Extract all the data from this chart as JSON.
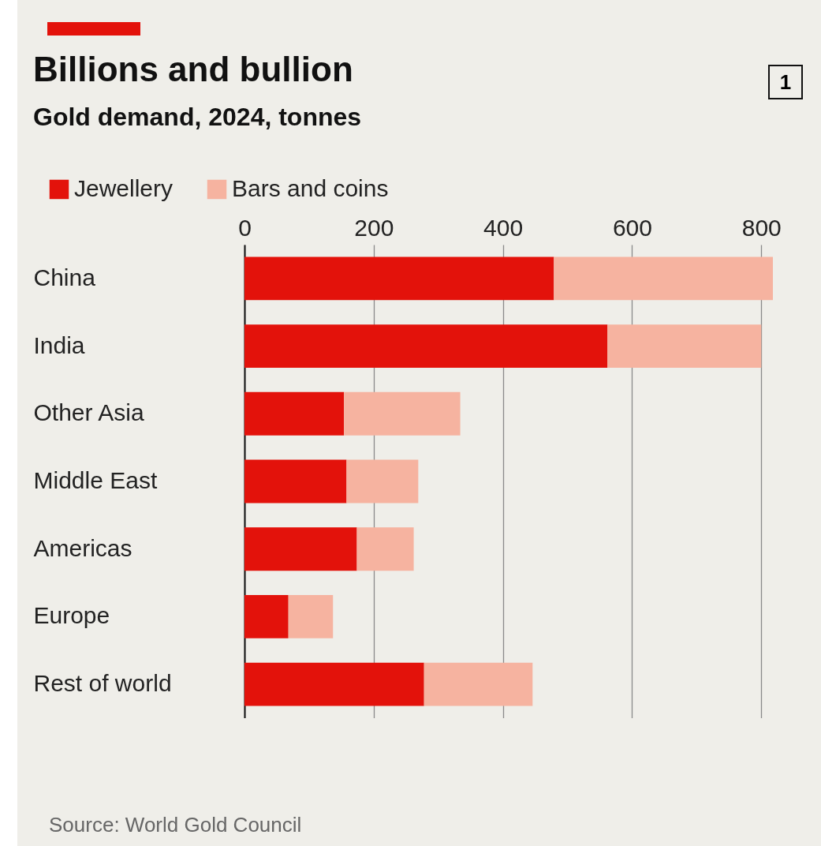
{
  "chart_data": {
    "type": "bar",
    "orientation": "horizontal",
    "stacked": true,
    "title": "Billions and bullion",
    "subtitle": "Gold demand, 2024, tonnes",
    "categories": [
      "China",
      "India",
      "Other Asia",
      "Middle East",
      "Americas",
      "Europe",
      "Rest of world"
    ],
    "series": [
      {
        "name": "Jewellery",
        "color": "#e3120b",
        "values": [
          479,
          562,
          154,
          158,
          174,
          68,
          278
        ]
      },
      {
        "name": "Bars and coins",
        "color": "#f6b3a0",
        "values": [
          339,
          238,
          180,
          111,
          88,
          69,
          168
        ]
      }
    ],
    "xlim": [
      0,
      818
    ],
    "xticks": [
      0,
      200,
      400,
      600,
      800
    ],
    "grid": "x",
    "legend": "top left",
    "annotations": [
      "1",
      "Source: World Gold Council"
    ]
  }
}
